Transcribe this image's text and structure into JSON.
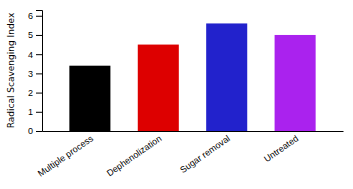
{
  "chart_data": {
    "type": "bar",
    "categories": [
      "Multiple process",
      "Dephenolization",
      "Sugar removal",
      "Untreated"
    ],
    "values": [
      3.4,
      4.5,
      5.6,
      5.0
    ],
    "colors": [
      "#000000",
      "#dd0000",
      "#2222cc",
      "#aa22ee"
    ],
    "ylabel": "Radical Scavenging Index",
    "ylim": [
      0,
      6.3
    ],
    "yticks": [
      0,
      1,
      2,
      3,
      4,
      5,
      6
    ],
    "grid": false
  }
}
